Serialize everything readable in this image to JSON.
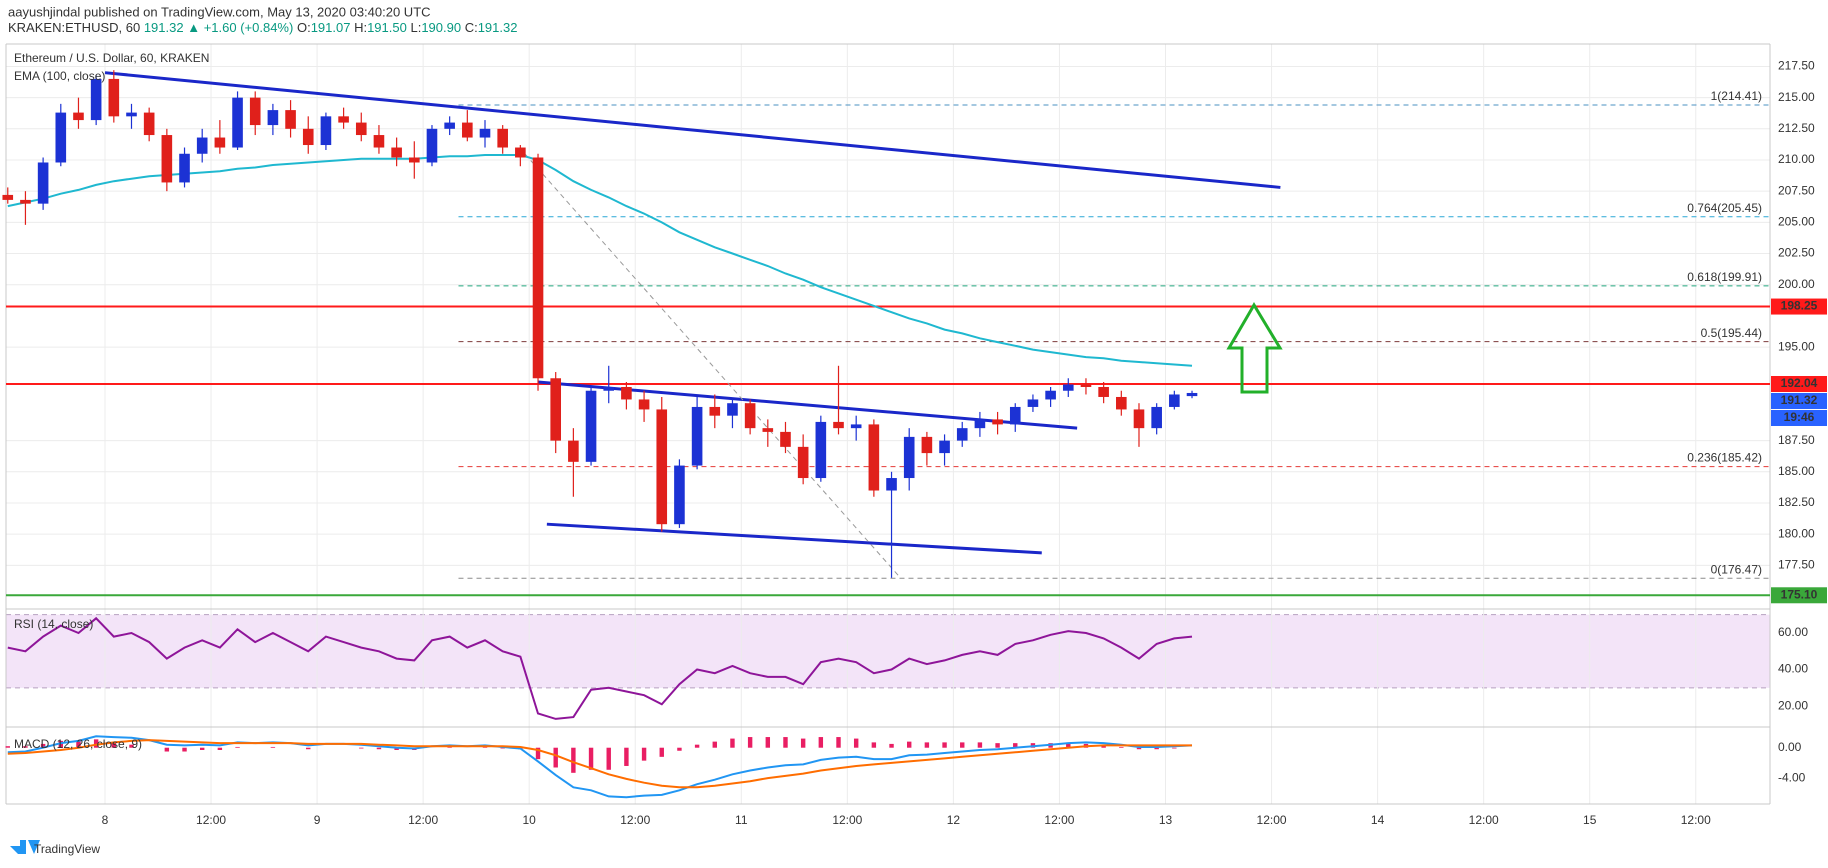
{
  "header": {
    "published": "aayushjindal published on TradingView.com, May 13, 2020 03:40:20 UTC",
    "symbol": "KRAKEN:ETHUSD, 60",
    "last": "191.32",
    "change": "▲ +1.60 (+0.84%)",
    "ohlc": [
      [
        "O:",
        "191.07"
      ],
      [
        "H:",
        "191.50"
      ],
      [
        "L:",
        "190.90"
      ],
      [
        "C:",
        "191.32"
      ]
    ]
  },
  "footer": {
    "brand": "TradingView"
  },
  "chart_data": {
    "type": "candlestick",
    "title": "Ethereum / U.S. Dollar, 60, KRAKEN",
    "up_color": "#1c32d4",
    "down_color": "#e0201b",
    "grid": true,
    "xlim": [
      12.8,
      212.4
    ],
    "xticks": [
      {
        "value": 24,
        "label": "8"
      },
      {
        "value": 36,
        "label": "12:00"
      },
      {
        "value": 48,
        "label": "9"
      },
      {
        "value": 60,
        "label": "12:00"
      },
      {
        "value": 72,
        "label": "10"
      },
      {
        "value": 84,
        "label": "12:00"
      },
      {
        "value": 96,
        "label": "11"
      },
      {
        "value": 108,
        "label": "12:00"
      },
      {
        "value": 120,
        "label": "12"
      },
      {
        "value": 132,
        "label": "12:00"
      },
      {
        "value": 144,
        "label": "13"
      },
      {
        "value": 156,
        "label": "12:00"
      },
      {
        "value": 168,
        "label": "14"
      },
      {
        "value": 180,
        "label": "12:00"
      },
      {
        "value": 192,
        "label": "15"
      },
      {
        "value": 204,
        "label": "12:00"
      }
    ],
    "ylim": [
      174,
      219.3
    ],
    "yticks": [
      {
        "value": 177.5,
        "label": "177.50"
      },
      {
        "value": 180,
        "label": "180.00"
      },
      {
        "value": 182.5,
        "label": "182.50"
      },
      {
        "value": 185,
        "label": "185.00"
      },
      {
        "value": 187.5,
        "label": "187.50"
      },
      {
        "value": 195,
        "label": "195.00"
      },
      {
        "value": 200,
        "label": "200.00"
      },
      {
        "value": 202.5,
        "label": "202.50"
      },
      {
        "value": 205,
        "label": "205.00"
      },
      {
        "value": 207.5,
        "label": "207.50"
      },
      {
        "value": 210,
        "label": "210.00"
      },
      {
        "value": 212.5,
        "label": "212.50"
      },
      {
        "value": 215,
        "label": "215.00"
      },
      {
        "value": 217.5,
        "label": "217.50"
      }
    ],
    "x": [
      13,
      15,
      17,
      19,
      21,
      23,
      25,
      27,
      29,
      31,
      33,
      35,
      37,
      39,
      41,
      43,
      45,
      47,
      49,
      51,
      53,
      55,
      57,
      59,
      61,
      63,
      65,
      67,
      69,
      71,
      73,
      75,
      77,
      79,
      81,
      83,
      85,
      87,
      89,
      91,
      93,
      95,
      97,
      99,
      101,
      103,
      105,
      107,
      109,
      111,
      113,
      115,
      117,
      119,
      121,
      123,
      125,
      127,
      129,
      131,
      133,
      135,
      137,
      139,
      141,
      143,
      145,
      147
    ],
    "open": [
      207.2,
      206.8,
      206.5,
      209.8,
      213.8,
      213.2,
      216.5,
      213.5,
      213.8,
      212,
      208.2,
      210.5,
      211.8,
      211,
      215,
      212.8,
      214,
      212.5,
      211.2,
      213.5,
      213,
      212,
      211,
      210.2,
      209.8,
      212.5,
      213,
      211.8,
      212.5,
      211,
      210.2,
      192.5,
      187.5,
      185.8,
      191.5,
      191.8,
      190.8,
      190,
      180.8,
      185.5,
      190.2,
      189.5,
      190.5,
      188.5,
      188.2,
      187,
      184.5,
      189,
      188.5,
      188.8,
      183.5,
      184.5,
      187.8,
      186.5,
      187.5,
      188.5,
      189.2,
      188.8,
      190.2,
      190.8,
      191.5,
      192,
      191.8,
      191,
      190,
      188.5,
      190.2,
      191.07
    ],
    "high": [
      207.8,
      207.5,
      210.2,
      214.5,
      215,
      216.8,
      217.2,
      214.5,
      214.2,
      212.5,
      211,
      212.5,
      213.2,
      215.5,
      215.5,
      214.5,
      214.8,
      213.5,
      213.8,
      214.2,
      213.8,
      212.8,
      211.8,
      211.5,
      212.8,
      213.5,
      214,
      213.2,
      212.8,
      211.2,
      210.5,
      193,
      188.5,
      191.8,
      193.5,
      192.2,
      191.5,
      191,
      186,
      191,
      191.2,
      190.8,
      190.8,
      189.2,
      189,
      188,
      189.5,
      193.5,
      189.5,
      189.2,
      185,
      188.5,
      188.2,
      188,
      189,
      189.8,
      189.8,
      190.5,
      191.2,
      191.8,
      192.5,
      192.5,
      192.2,
      191.5,
      190.5,
      190.5,
      191.5,
      191.5
    ],
    "low": [
      206.5,
      204.8,
      206,
      209.5,
      212.5,
      212.8,
      213,
      212.5,
      211.5,
      207.5,
      207.8,
      209.8,
      210.5,
      210.8,
      212,
      212,
      211.8,
      210.5,
      210.8,
      212.5,
      211.5,
      210.5,
      209.5,
      208.5,
      209.5,
      212,
      211.5,
      211,
      210.5,
      209.5,
      191.5,
      186.5,
      183,
      185.5,
      190.5,
      190,
      189,
      180.2,
      180.5,
      185.2,
      188.5,
      188.5,
      188,
      187,
      186.5,
      184,
      184.2,
      188,
      187.5,
      183,
      176.5,
      183.5,
      185.5,
      185.5,
      187,
      187.8,
      188,
      188.2,
      189.8,
      190.2,
      191,
      191.2,
      190.5,
      189.5,
      187,
      188,
      190,
      190.9
    ],
    "close": [
      206.8,
      206.5,
      209.8,
      213.8,
      213.2,
      216.5,
      213.5,
      213.8,
      212,
      208.2,
      210.5,
      211.8,
      211,
      215,
      212.8,
      214,
      212.5,
      211.2,
      213.5,
      213,
      212,
      211,
      210.2,
      209.8,
      212.5,
      213,
      211.8,
      212.5,
      211,
      210.2,
      192.5,
      187.5,
      185.8,
      191.5,
      191.8,
      190.8,
      190,
      180.8,
      185.5,
      190.2,
      189.5,
      190.5,
      188.5,
      188.2,
      187,
      184.5,
      189,
      188.5,
      188.8,
      183.5,
      184.5,
      187.8,
      186.5,
      187.5,
      188.5,
      189.2,
      188.8,
      190.2,
      190.8,
      191.5,
      192,
      191.8,
      191,
      190,
      188.5,
      190.2,
      191.2,
      191.32
    ],
    "ema": {
      "name": "EMA (100, close)",
      "color": "#1fb8d0",
      "values": [
        206.3,
        206.6,
        206.9,
        207.3,
        207.6,
        208,
        208.3,
        208.5,
        208.7,
        208.8,
        208.9,
        209,
        209.1,
        209.3,
        209.4,
        209.6,
        209.7,
        209.8,
        209.9,
        210,
        210.1,
        210.1,
        210.1,
        210.1,
        210.2,
        210.3,
        210.3,
        210.4,
        210.4,
        210.4,
        210,
        209.2,
        208.3,
        207.6,
        207,
        206.3,
        205.7,
        205,
        204.2,
        203.6,
        203,
        202.5,
        202,
        201.5,
        200.9,
        200.4,
        199.8,
        199.3,
        198.8,
        198.3,
        197.8,
        197.3,
        196.9,
        196.4,
        196.1,
        195.7,
        195.4,
        195.1,
        194.8,
        194.6,
        194.4,
        194.2,
        194.1,
        193.9,
        193.8,
        193.7,
        193.6,
        193.5
      ]
    },
    "fib": {
      "from_x": 64,
      "levels": [
        {
          "value": 214.41,
          "label": "1(214.41)",
          "color": "#4a90c2"
        },
        {
          "value": 205.45,
          "label": "0.764(205.45)",
          "color": "#2aa7d6"
        },
        {
          "value": 199.91,
          "label": "0.618(199.91)",
          "color": "#22a77f"
        },
        {
          "value": 195.44,
          "label": "0.5(195.44)",
          "color": "#7d3b3b"
        },
        {
          "value": 185.42,
          "label": "0.236(185.42)",
          "color": "#e53935"
        },
        {
          "value": 176.47,
          "label": "0(176.47)",
          "color": "#8c8c8c"
        }
      ]
    },
    "levels": [
      {
        "value": 198.25,
        "label": "198.25",
        "color": "#ff1a1a"
      },
      {
        "value": 192.04,
        "label": "192.04",
        "color": "#ff1a1a"
      },
      {
        "value": 175.1,
        "label": "175.10",
        "color": "#3aa83a"
      }
    ],
    "last_price": {
      "value": 191.32,
      "label": "191.32",
      "countdown": "19:46",
      "color": "#2962ff"
    },
    "trendlines": [
      {
        "x": [
          24,
          157
        ],
        "y": [
          217,
          207.8
        ],
        "color": "#1a27c9",
        "dashed": false
      },
      {
        "x": [
          73,
          134
        ],
        "y": [
          192.2,
          188.5
        ],
        "color": "#1a27c9",
        "dashed": false
      },
      {
        "x": [
          74,
          130
        ],
        "y": [
          180.8,
          178.5
        ],
        "color": "#1a27c9",
        "dashed": false
      },
      {
        "x": [
          71.5,
          114
        ],
        "y": [
          210.5,
          176.5
        ],
        "color": "#999999",
        "dashed": true
      }
    ],
    "rsi": {
      "title": "RSI (14, close)",
      "color": "#8e1599",
      "bands": [
        30,
        70
      ],
      "band_color": "#f3e4f8",
      "ylim": [
        8.6,
        72
      ],
      "yticks": [
        {
          "value": 20,
          "label": "20.00"
        },
        {
          "value": 40,
          "label": "40.00"
        },
        {
          "value": 60,
          "label": "60.00"
        }
      ],
      "values": [
        52,
        50,
        58,
        64,
        60,
        68,
        58,
        60,
        55,
        46,
        52,
        56,
        52,
        62,
        55,
        60,
        55,
        50,
        58,
        55,
        52,
        50,
        46,
        45,
        56,
        58,
        52,
        56,
        50,
        47,
        16,
        13,
        14,
        29,
        30,
        28,
        26,
        21,
        32,
        40,
        38,
        42,
        38,
        36,
        36,
        32,
        44,
        46,
        44,
        38,
        40,
        46,
        43,
        45,
        48,
        50,
        48,
        54,
        56,
        59,
        61,
        60,
        57,
        52,
        46,
        54,
        57,
        58
      ]
    },
    "macd": {
      "title": "MACD (12, 26, close, 9)",
      "ylim": [
        -7.4,
        2.46
      ],
      "yticks": [
        {
          "value": 0,
          "label": "0.00"
        },
        {
          "value": -4,
          "label": "-4.00"
        }
      ],
      "macd": {
        "color": "#2196f3",
        "values": [
          -0.6,
          -0.5,
          0,
          0.6,
          0.9,
          1.5,
          1.4,
          1.3,
          1.0,
          0.4,
          0.3,
          0.4,
          0.3,
          0.7,
          0.6,
          0.7,
          0.6,
          0.3,
          0.5,
          0.5,
          0.4,
          0.2,
          0,
          -0.1,
          0.2,
          0.3,
          0.2,
          0.3,
          0.1,
          -0.1,
          -1.8,
          -3.6,
          -5.2,
          -5.6,
          -6.4,
          -6.5,
          -6.3,
          -6.2,
          -5.6,
          -4.8,
          -4.2,
          -3.5,
          -3.0,
          -2.6,
          -2.3,
          -2.2,
          -1.6,
          -1.3,
          -1.2,
          -1.5,
          -1.5,
          -1.0,
          -0.9,
          -0.7,
          -0.5,
          -0.3,
          -0.2,
          0,
          0.2,
          0.4,
          0.6,
          0.7,
          0.6,
          0.4,
          0.1,
          0.1,
          0.2,
          0.3
        ]
      },
      "signal": {
        "color": "#ff6d00",
        "values": [
          -0.8,
          -0.7,
          -0.5,
          -0.3,
          0,
          0.4,
          0.7,
          0.9,
          1.0,
          0.9,
          0.8,
          0.7,
          0.6,
          0.6,
          0.6,
          0.6,
          0.6,
          0.5,
          0.5,
          0.5,
          0.5,
          0.4,
          0.3,
          0.2,
          0.2,
          0.2,
          0.2,
          0.2,
          0.2,
          0.1,
          -0.3,
          -1.0,
          -1.9,
          -2.7,
          -3.5,
          -4.1,
          -4.6,
          -5.0,
          -5.2,
          -5.2,
          -5.0,
          -4.7,
          -4.4,
          -4.0,
          -3.7,
          -3.4,
          -3.0,
          -2.7,
          -2.4,
          -2.2,
          -2.0,
          -1.8,
          -1.6,
          -1.4,
          -1.2,
          -1.0,
          -0.8,
          -0.6,
          -0.4,
          -0.2,
          0,
          0.2,
          0.3,
          0.3,
          0.3,
          0.3,
          0.3,
          0.3
        ]
      },
      "histogram": {
        "color": "#e91e63",
        "values": [
          0.2,
          0.2,
          0.5,
          0.9,
          0.9,
          1.1,
          0.7,
          0.4,
          0,
          -0.5,
          -0.5,
          -0.3,
          -0.3,
          0.1,
          0,
          0.1,
          0,
          -0.2,
          0,
          0,
          -0.1,
          -0.2,
          -0.3,
          -0.3,
          0,
          0.1,
          0,
          0.1,
          -0.1,
          -0.2,
          -1.5,
          -2.6,
          -3.3,
          -2.9,
          -2.9,
          -2.4,
          -1.7,
          -1.2,
          -0.4,
          0.4,
          0.8,
          1.2,
          1.4,
          1.4,
          1.4,
          1.2,
          1.4,
          1.4,
          1.2,
          0.7,
          0.5,
          0.8,
          0.7,
          0.7,
          0.7,
          0.7,
          0.6,
          0.6,
          0.6,
          0.6,
          0.6,
          0.5,
          0.3,
          0.1,
          -0.2,
          -0.2,
          -0.1,
          0
        ]
      }
    }
  }
}
